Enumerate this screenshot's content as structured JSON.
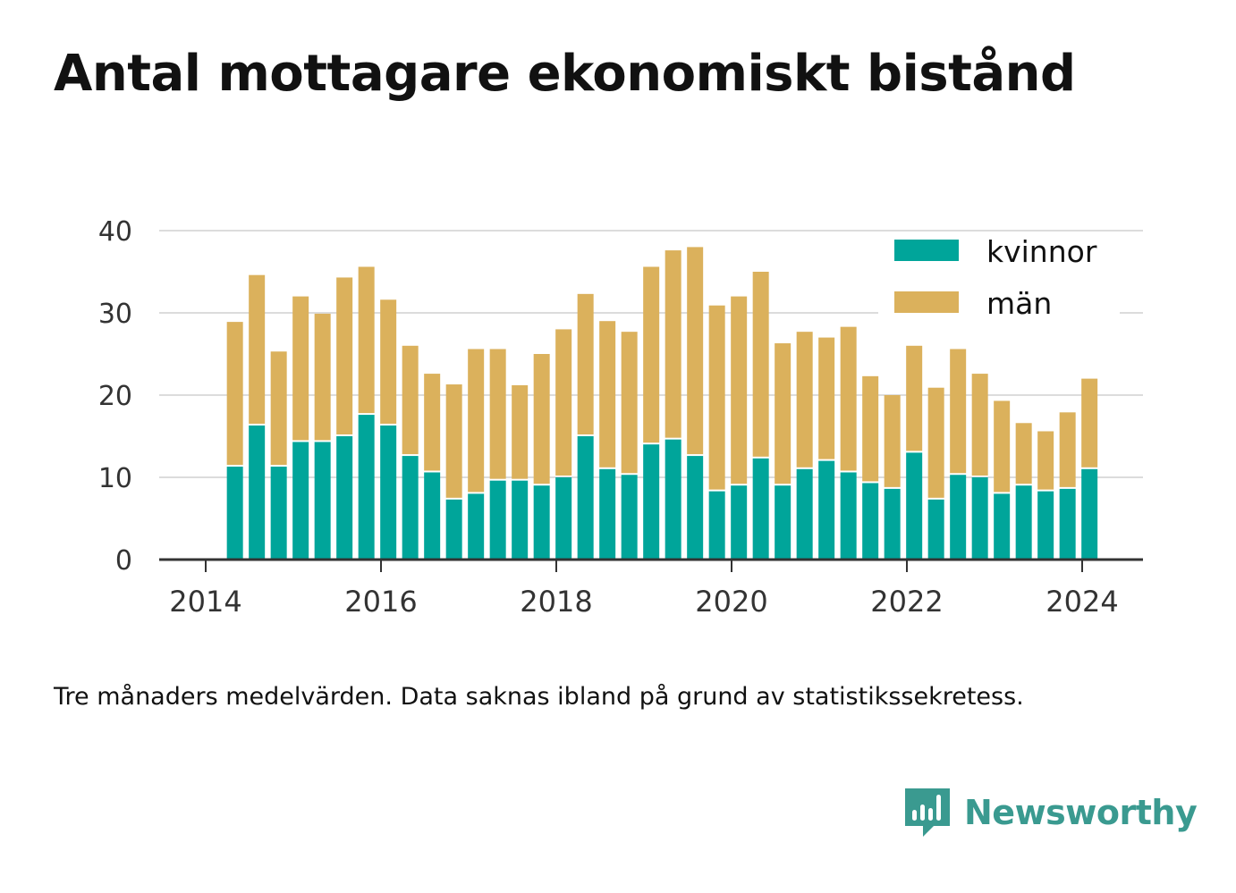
{
  "title": "Antal mottagare ekonomiskt bistånd",
  "footnote": "Tre månaders medelvärden. Data saknas ibland på grund av statistikssekretess.",
  "brand": {
    "name": "Newsworthy",
    "icon": "newsworthy-logo-icon",
    "color": "#3a9a90"
  },
  "chart_data": {
    "type": "bar",
    "stacked": true,
    "x": [
      "2014-05",
      "2014-08",
      "2014-11",
      "2015-02",
      "2015-05",
      "2015-08",
      "2015-11",
      "2016-02",
      "2016-05",
      "2016-08",
      "2016-11",
      "2017-02",
      "2017-05",
      "2017-08",
      "2017-11",
      "2018-02",
      "2018-05",
      "2018-08",
      "2018-11",
      "2019-02",
      "2019-05",
      "2019-08",
      "2019-11",
      "2020-02",
      "2020-05",
      "2020-08",
      "2020-11",
      "2021-02",
      "2021-05",
      "2021-08",
      "2021-11",
      "2022-02",
      "2022-05",
      "2022-08",
      "2022-11",
      "2023-02",
      "2023-05",
      "2023-08",
      "2023-11",
      "2024-02"
    ],
    "series": [
      {
        "name": "kvinnor",
        "color": "#00a59a",
        "values": [
          11.3,
          16.3,
          11.3,
          14.3,
          14.3,
          15.0,
          17.6,
          16.3,
          12.6,
          10.6,
          7.3,
          8.0,
          9.6,
          9.6,
          9.0,
          10.0,
          15.0,
          11.0,
          10.3,
          14.0,
          14.6,
          12.6,
          8.3,
          9.0,
          12.3,
          9.0,
          11.0,
          12.0,
          10.6,
          9.3,
          8.6,
          13.0,
          7.3,
          10.3,
          10.0,
          8.0,
          9.0,
          8.3,
          8.6,
          11.0
        ]
      },
      {
        "name": "män",
        "color": "#dbb15c",
        "values": [
          17.6,
          18.3,
          14.0,
          17.7,
          15.6,
          19.3,
          18.0,
          15.3,
          13.4,
          12.0,
          14.0,
          17.6,
          16.0,
          11.6,
          16.0,
          18.0,
          17.3,
          18.0,
          17.4,
          21.6,
          23.0,
          25.4,
          22.6,
          23.0,
          22.7,
          17.3,
          16.7,
          15.0,
          17.7,
          13.0,
          11.4,
          13.0,
          13.6,
          15.3,
          12.6,
          11.3,
          7.6,
          7.3,
          9.3,
          11.0
        ]
      }
    ],
    "ylim": [
      0,
      40
    ],
    "y_ticks": [
      "0",
      "10",
      "20",
      "30",
      "40"
    ],
    "x_ticks": [
      "2014",
      "2016",
      "2018",
      "2020",
      "2022",
      "2024"
    ],
    "grid": true,
    "legend_position": "top-right"
  }
}
